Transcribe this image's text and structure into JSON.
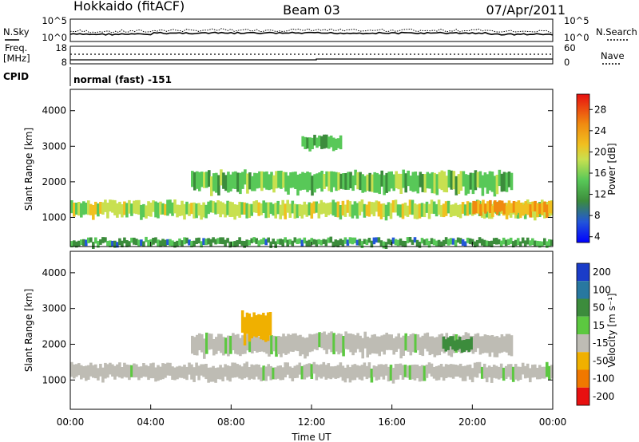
{
  "header": {
    "station": "Hokkaido (fitACF)",
    "beam": "Beam 03",
    "date": "07/Apr/2011"
  },
  "top_panels": {
    "nsky_label": "N.Sky",
    "nsearch_label": "N.Search",
    "noise_ticks": [
      "10^5",
      "10^0"
    ],
    "freq_label_1": "Freq.",
    "freq_label_2": "[MHz]",
    "freq_ticks": [
      "18",
      "8"
    ],
    "nave_label": "Nave",
    "nave_ticks": [
      "60",
      "0"
    ],
    "cpid_label": "CPID",
    "cpid_value": "normal (fast) -151"
  },
  "chart_data": [
    {
      "type": "heatmap",
      "name": "power",
      "ylabel": "Slant Range [km]",
      "xlabel": "",
      "ylim": [
        180,
        4600
      ],
      "y_ticks": [
        "4000",
        "3000",
        "2000",
        "1000"
      ],
      "colorbar_label": "Power [dB]",
      "colorbar_ticks": [
        "28",
        "24",
        "20",
        "16",
        "12",
        "8",
        "4"
      ],
      "colorscale": [
        "#0000ff",
        "#2356d8",
        "#3c8c3c",
        "#58c858",
        "#c8e050",
        "#f0c020",
        "#f08a10",
        "#e81010"
      ],
      "features": [
        {
          "band": "main_scatter",
          "t": [
            0,
            24
          ],
          "range_km": [
            1000,
            1450
          ],
          "power_db": 18
        },
        {
          "band": "upper_scatter",
          "t": [
            6,
            22
          ],
          "range_km": [
            1700,
            2300
          ],
          "power_db": 14
        },
        {
          "band": "high_patch",
          "t": [
            11.5,
            13.5
          ],
          "range_km": [
            2900,
            3300
          ],
          "power_db": 12
        },
        {
          "band": "strong_echo",
          "t": [
            20,
            24
          ],
          "range_km": [
            1050,
            1450
          ],
          "power_db": 26
        },
        {
          "band": "ground_scatter_low",
          "t": [
            0,
            24
          ],
          "range_km": [
            200,
            400
          ],
          "power_db": 10
        }
      ]
    },
    {
      "type": "heatmap",
      "name": "velocity",
      "ylabel": "Slant Range [km]",
      "xlabel": "Time UT",
      "ylim": [
        180,
        4600
      ],
      "y_ticks": [
        "4000",
        "3000",
        "2000",
        "1000"
      ],
      "x_ticks": [
        "00:00",
        "04:00",
        "08:00",
        "12:00",
        "16:00",
        "20:00",
        "00:00"
      ],
      "colorbar_label": "Velocity [m s⁻¹]",
      "colorbar_ticks": [
        "200",
        "100",
        "50",
        "15",
        "-15",
        "-50",
        "-100",
        "-200"
      ],
      "colorscale": [
        "#1a3cc8",
        "#2878a0",
        "#3c8c3c",
        "#5cc840",
        "#bebcb4",
        "#f0b000",
        "#f07800",
        "#e81010"
      ],
      "features": [
        {
          "band": "ground_scatter",
          "t": [
            0,
            24
          ],
          "range_km": [
            1000,
            1450
          ],
          "velocity": 0
        },
        {
          "band": "upper_scatter",
          "t": [
            6,
            22
          ],
          "range_km": [
            1700,
            2300
          ],
          "velocity": 0
        },
        {
          "band": "streak",
          "t": [
            8.5,
            10
          ],
          "range_km": [
            2100,
            2900
          ],
          "velocity": -40
        },
        {
          "band": "patch_green",
          "t": [
            18.5,
            20
          ],
          "range_km": [
            1800,
            2200
          ],
          "velocity": 30
        }
      ]
    }
  ]
}
